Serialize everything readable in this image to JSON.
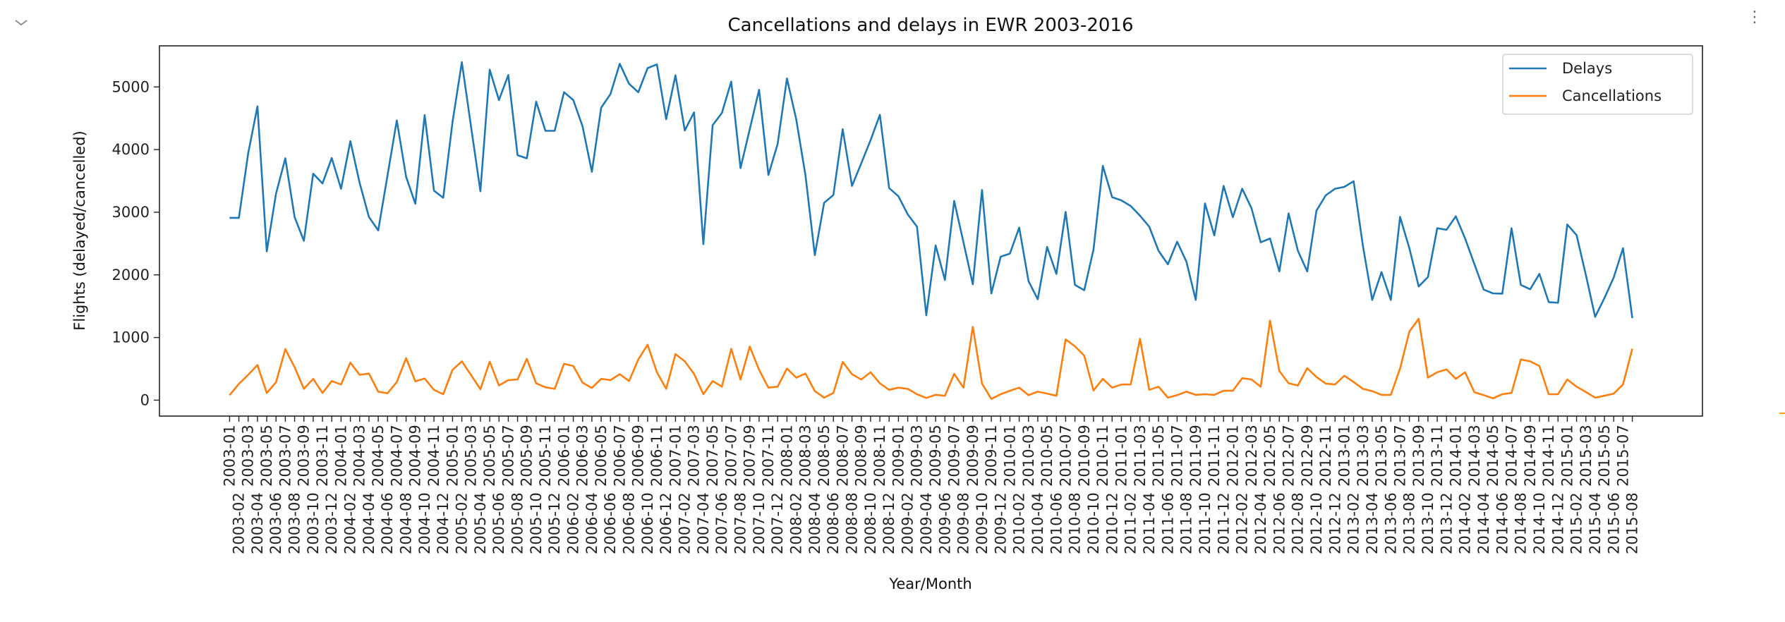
{
  "toolbar": {
    "collapse_icon": "chevron-down-icon",
    "more_icon": "vertical-ellipsis-icon",
    "more_glyph": "⋮"
  },
  "chart_data": {
    "type": "line",
    "title": "Cancellations and delays in EWR 2003-2016",
    "xlabel": "Year/Month",
    "ylabel": "Flights (delayed/cancelled)",
    "ylim": [
      -254,
      5656
    ],
    "yticks": [
      0,
      1000,
      2000,
      3000,
      4000,
      5000
    ],
    "grid": false,
    "legend_position": "top-right",
    "categories": [
      "2003-01",
      "2003-02",
      "2003-03",
      "2003-04",
      "2003-05",
      "2003-06",
      "2003-07",
      "2003-08",
      "2003-09",
      "2003-10",
      "2003-11",
      "2003-12",
      "2004-01",
      "2004-02",
      "2004-03",
      "2004-04",
      "2004-05",
      "2004-06",
      "2004-07",
      "2004-08",
      "2004-09",
      "2004-10",
      "2004-11",
      "2004-12",
      "2005-01",
      "2005-02",
      "2005-03",
      "2005-04",
      "2005-05",
      "2005-06",
      "2005-07",
      "2005-08",
      "2005-09",
      "2005-10",
      "2005-11",
      "2005-12",
      "2006-01",
      "2006-02",
      "2006-03",
      "2006-04",
      "2006-05",
      "2006-06",
      "2006-07",
      "2006-08",
      "2006-09",
      "2006-10",
      "2006-11",
      "2006-12",
      "2007-01",
      "2007-02",
      "2007-03",
      "2007-04",
      "2007-05",
      "2007-06",
      "2007-07",
      "2007-08",
      "2007-09",
      "2007-10",
      "2007-11",
      "2007-12",
      "2008-01",
      "2008-02",
      "2008-03",
      "2008-04",
      "2008-05",
      "2008-06",
      "2008-07",
      "2008-08",
      "2008-09",
      "2008-10",
      "2008-11",
      "2008-12",
      "2009-01",
      "2009-02",
      "2009-03",
      "2009-04",
      "2009-05",
      "2009-06",
      "2009-07",
      "2009-08",
      "2009-09",
      "2009-10",
      "2009-11",
      "2009-12",
      "2010-01",
      "2010-02",
      "2010-03",
      "2010-04",
      "2010-05",
      "2010-06",
      "2010-07",
      "2010-08",
      "2010-09",
      "2010-10",
      "2010-11",
      "2010-12",
      "2011-01",
      "2011-02",
      "2011-03",
      "2011-04",
      "2011-05",
      "2011-06",
      "2011-07",
      "2011-08",
      "2011-09",
      "2011-10",
      "2011-11",
      "2011-12",
      "2012-01",
      "2012-02",
      "2012-03",
      "2012-04",
      "2012-05",
      "2012-06",
      "2012-07",
      "2012-08",
      "2012-09",
      "2012-10",
      "2012-11",
      "2012-12",
      "2013-01",
      "2013-02",
      "2013-03",
      "2013-04",
      "2013-05",
      "2013-06",
      "2013-07",
      "2013-08",
      "2013-09",
      "2013-10",
      "2013-11",
      "2013-12",
      "2014-01",
      "2014-02",
      "2014-03",
      "2014-04",
      "2014-05",
      "2014-06",
      "2014-07",
      "2014-08",
      "2014-09",
      "2014-10",
      "2014-11",
      "2014-12",
      "2015-01",
      "2015-02",
      "2015-03",
      "2015-04",
      "2015-05",
      "2015-06",
      "2015-07",
      "2015-08"
    ],
    "series": [
      {
        "name": "Delays",
        "color": "#1f77b4",
        "values": [
          2910,
          2910,
          3935,
          4690,
          2375,
          3295,
          3860,
          2920,
          2545,
          3615,
          3460,
          3865,
          3375,
          4135,
          3470,
          2925,
          2710,
          3585,
          4465,
          3565,
          3135,
          4550,
          3345,
          3230,
          4440,
          5395,
          4360,
          3335,
          5275,
          4790,
          5190,
          3910,
          3860,
          4765,
          4300,
          4300,
          4915,
          4790,
          4370,
          3645,
          4670,
          4885,
          5370,
          5050,
          4915,
          5300,
          5360,
          4485,
          5185,
          4305,
          4595,
          2490,
          4390,
          4585,
          5085,
          3705,
          4325,
          4955,
          3595,
          4090,
          5135,
          4480,
          3585,
          2315,
          3150,
          3275,
          4325,
          3420,
          3780,
          4150,
          4555,
          3385,
          3255,
          2965,
          2770,
          1355,
          2470,
          1920,
          3180,
          2520,
          1850,
          3355,
          1705,
          2290,
          2340,
          2755,
          1900,
          1610,
          2445,
          2015,
          3005,
          1840,
          1755,
          2405,
          3740,
          3240,
          3190,
          3100,
          2945,
          2770,
          2385,
          2170,
          2530,
          2210,
          1600,
          3140,
          2630,
          3420,
          2920,
          3375,
          3065,
          2520,
          2580,
          2055,
          2980,
          2385,
          2055,
          3025,
          3270,
          3375,
          3405,
          3495,
          2460,
          1600,
          2045,
          1600,
          2925,
          2425,
          1815,
          1965,
          2745,
          2720,
          2935,
          2580,
          2170,
          1765,
          1705,
          1700,
          2745,
          1840,
          1770,
          2015,
          1565,
          1555,
          2805,
          2635,
          1995,
          1330,
          1630,
          1960,
          2425,
          1310
        ]
      },
      {
        "name": "Cancellations",
        "color": "#ff7f0e",
        "values": [
          80,
          260,
          405,
          560,
          115,
          285,
          815,
          525,
          180,
          340,
          115,
          305,
          250,
          600,
          405,
          425,
          135,
          110,
          290,
          670,
          300,
          345,
          165,
          95,
          485,
          620,
          400,
          175,
          615,
          235,
          320,
          330,
          660,
          270,
          205,
          180,
          580,
          545,
          280,
          195,
          340,
          320,
          415,
          305,
          650,
          885,
          445,
          180,
          735,
          620,
          420,
          95,
          305,
          215,
          820,
          330,
          855,
          485,
          200,
          215,
          505,
          360,
          425,
          145,
          40,
          115,
          610,
          415,
          330,
          445,
          270,
          165,
          200,
          180,
          95,
          35,
          85,
          70,
          420,
          200,
          1170,
          265,
          20,
          95,
          150,
          200,
          80,
          135,
          105,
          70,
          970,
          860,
          710,
          155,
          340,
          200,
          250,
          250,
          980,
          165,
          215,
          40,
          80,
          135,
          85,
          95,
          85,
          150,
          150,
          350,
          330,
          215,
          1270,
          465,
          270,
          235,
          510,
          370,
          265,
          250,
          390,
          290,
          180,
          145,
          85,
          85,
          505,
          1095,
          1300,
          360,
          445,
          490,
          340,
          445,
          125,
          80,
          30,
          95,
          115,
          650,
          620,
          545,
          95,
          95,
          330,
          215,
          130,
          40,
          70,
          105,
          250,
          820
        ]
      }
    ]
  }
}
